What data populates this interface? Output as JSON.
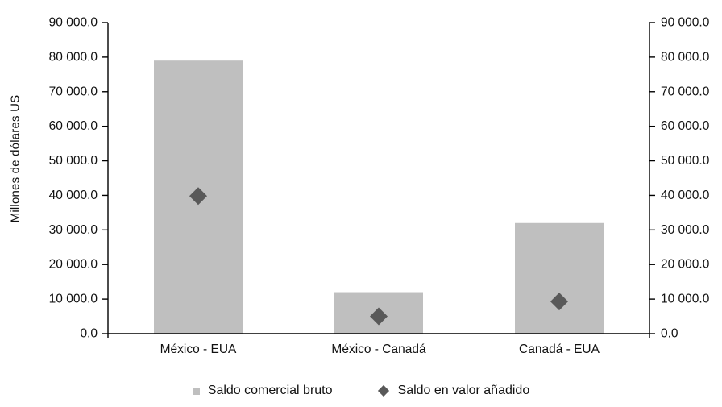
{
  "page": {
    "background": "#ffffff",
    "axis_color": "#000000",
    "text_color": "#111111"
  },
  "chart_data": {
    "type": "bar",
    "title": "",
    "xlabel": "",
    "ylabel": "Millones de dólares US",
    "categories": [
      "México - EUA",
      "México - Canadá",
      "Canadá - EUA"
    ],
    "series": [
      {
        "name": "Saldo comercial bruto",
        "type": "bar",
        "color": "#bfbfbf",
        "values": [
          79000,
          12000,
          32000
        ]
      },
      {
        "name": "Saldo en valor añadido",
        "type": "point-diamond",
        "color": "#595959",
        "values": [
          39800,
          5000,
          9300
        ]
      }
    ],
    "ylim": [
      0,
      90000
    ],
    "ytick_step": 10000,
    "ytick_labels": [
      "0.0",
      "10 000.0",
      "20 000.0",
      "30 000.0",
      "40 000.0",
      "50 000.0",
      "60 000.0",
      "70 000.0",
      "80 000.0",
      "90 000.0"
    ],
    "dual_axis": true,
    "grid": false,
    "legend_position": "bottom"
  }
}
